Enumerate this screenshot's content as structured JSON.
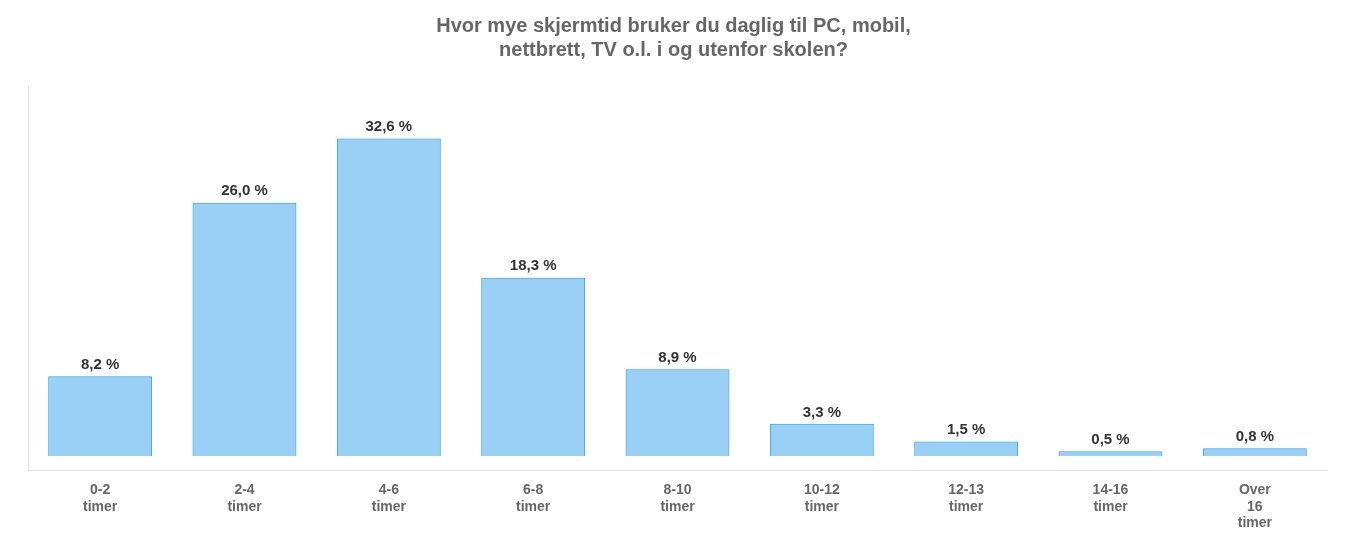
{
  "chart_data": {
    "type": "bar",
    "title": "Hvor mye skjermtid bruker du daglig til PC, mobil,\nnettbrett, TV o.l. i og utenfor skolen?",
    "categories": [
      "0-2\ntimer",
      "2-4\ntimer",
      "4-6\ntimer",
      "6-8\ntimer",
      "8-10\ntimer",
      "10-12\ntimer",
      "12-13\ntimer",
      "14-16\ntimer",
      "Over\n16\ntimer"
    ],
    "values": [
      8.2,
      26.0,
      32.6,
      18.3,
      8.9,
      3.3,
      1.5,
      0.5,
      0.8
    ],
    "value_labels": [
      "8,2 %",
      "26,0 %",
      "32,6 %",
      "18,3 %",
      "8,9 %",
      "3,3 %",
      "1,5 %",
      "0,5 %",
      "0,8 %"
    ],
    "data_labels": true,
    "ylim": [
      -1.5,
      38
    ],
    "tick_labels": "x",
    "grid": false
  }
}
